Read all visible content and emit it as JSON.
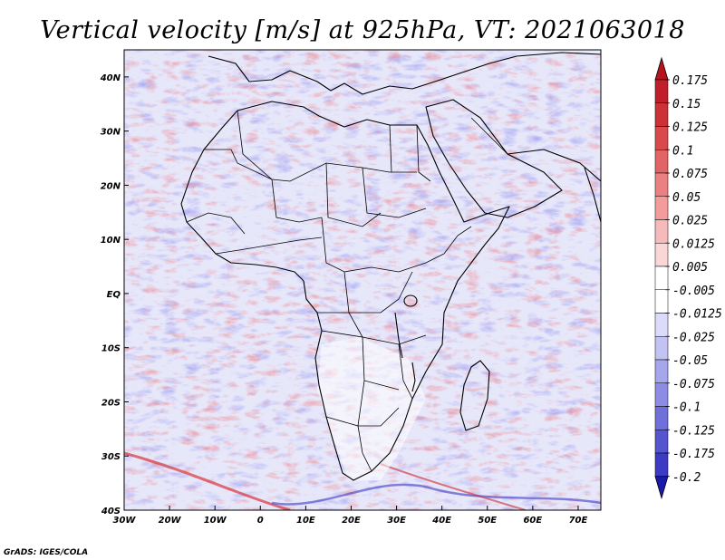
{
  "title": "Vertical velocity [m/s] at 925hPa, VT: 2021063018",
  "credit": "GrADS: IGES/COLA",
  "chart_data": {
    "type": "heatmap",
    "title": "Vertical velocity [m/s] at 925hPa, VT: 2021063018",
    "variable": "Vertical velocity",
    "units": "m/s",
    "level": "925hPa",
    "valid_time": "2021063018",
    "xlim": [
      -30,
      75
    ],
    "ylim": [
      -40,
      45
    ],
    "x_ticks": [
      {
        "value": -30,
        "label": "30W"
      },
      {
        "value": -20,
        "label": "20W"
      },
      {
        "value": -10,
        "label": "10W"
      },
      {
        "value": 0,
        "label": "0"
      },
      {
        "value": 10,
        "label": "10E"
      },
      {
        "value": 20,
        "label": "20E"
      },
      {
        "value": 30,
        "label": "30E"
      },
      {
        "value": 40,
        "label": "40E"
      },
      {
        "value": 50,
        "label": "50E"
      },
      {
        "value": 60,
        "label": "60E"
      },
      {
        "value": 70,
        "label": "70E"
      }
    ],
    "y_ticks": [
      {
        "value": 40,
        "label": "40N"
      },
      {
        "value": 30,
        "label": "30N"
      },
      {
        "value": 20,
        "label": "20N"
      },
      {
        "value": 10,
        "label": "10N"
      },
      {
        "value": 0,
        "label": "EQ"
      },
      {
        "value": -10,
        "label": "10S"
      },
      {
        "value": -20,
        "label": "20S"
      },
      {
        "value": -30,
        "label": "30S"
      },
      {
        "value": -40,
        "label": "40S"
      }
    ],
    "colorbar": {
      "orientation": "vertical",
      "extend": "both",
      "levels": [
        {
          "label": "0.175",
          "value": 0.175,
          "color": "#c01e2a"
        },
        {
          "label": "0.15",
          "value": 0.15,
          "color": "#cc3136"
        },
        {
          "label": "0.125",
          "value": 0.125,
          "color": "#d84a4c"
        },
        {
          "label": "0.1",
          "value": 0.1,
          "color": "#e26465"
        },
        {
          "label": "0.075",
          "value": 0.075,
          "color": "#eb8080"
        },
        {
          "label": "0.05",
          "value": 0.05,
          "color": "#f29d9c"
        },
        {
          "label": "0.025",
          "value": 0.025,
          "color": "#f7baba"
        },
        {
          "label": "0.0125",
          "value": 0.0125,
          "color": "#fbd6d6"
        },
        {
          "label": "0.005",
          "value": 0.005,
          "color": "#ffffff"
        },
        {
          "label": "-0.005",
          "value": -0.005,
          "color": "#ffffff"
        },
        {
          "label": "-0.0125",
          "value": -0.0125,
          "color": "#dcdcfa"
        },
        {
          "label": "-0.025",
          "value": -0.025,
          "color": "#c2c2f3"
        },
        {
          "label": "-0.05",
          "value": -0.05,
          "color": "#a6a6ec"
        },
        {
          "label": "-0.075",
          "value": -0.075,
          "color": "#8c8ce4"
        },
        {
          "label": "-0.1",
          "value": -0.1,
          "color": "#7070da"
        },
        {
          "label": "-0.125",
          "value": -0.125,
          "color": "#5555cf"
        },
        {
          "label": "-0.175",
          "value": -0.175,
          "color": "#3b3bc3"
        },
        {
          "label": "-0.2",
          "value": -0.2,
          "color": "#2222b3"
        }
      ],
      "top_arrow_color": "#b4141e",
      "bottom_arrow_color": "#1a1aa8"
    }
  }
}
